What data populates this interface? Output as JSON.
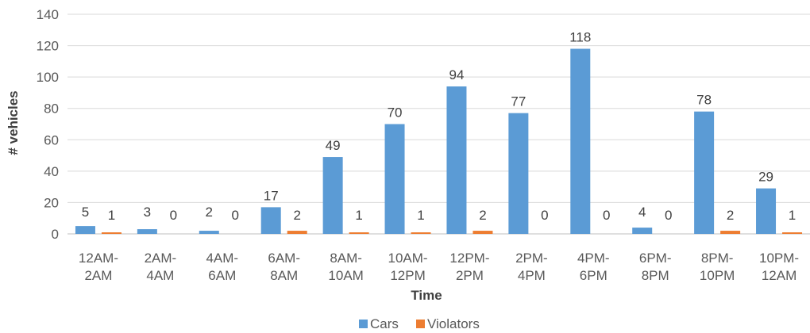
{
  "chart_data": {
    "type": "bar",
    "xlabel": "Time",
    "ylabel": "# vehicles",
    "ylim": [
      0,
      140
    ],
    "yticks": [
      0,
      20,
      40,
      60,
      80,
      100,
      120,
      140
    ],
    "grid": true,
    "legend_position": "bottom",
    "categories": [
      [
        "12AM-",
        "2AM"
      ],
      [
        "2AM-",
        "4AM"
      ],
      [
        "4AM-",
        "6AM"
      ],
      [
        "6AM-",
        "8AM"
      ],
      [
        "8AM-",
        "10AM"
      ],
      [
        "10AM-",
        "12PM"
      ],
      [
        "12PM-",
        "2PM"
      ],
      [
        "2PM-",
        "4PM"
      ],
      [
        "4PM-",
        "6PM"
      ],
      [
        "6PM-",
        "8PM"
      ],
      [
        "8PM-",
        "10PM"
      ],
      [
        "10PM-",
        "12AM"
      ]
    ],
    "series": [
      {
        "name": "Cars",
        "color": "#5B9BD5",
        "values": [
          5,
          3,
          2,
          17,
          49,
          70,
          94,
          77,
          118,
          4,
          78,
          29
        ]
      },
      {
        "name": "Violators",
        "color": "#ED7D31",
        "values": [
          1,
          0,
          0,
          2,
          1,
          1,
          2,
          0,
          0,
          0,
          2,
          1
        ]
      }
    ]
  }
}
